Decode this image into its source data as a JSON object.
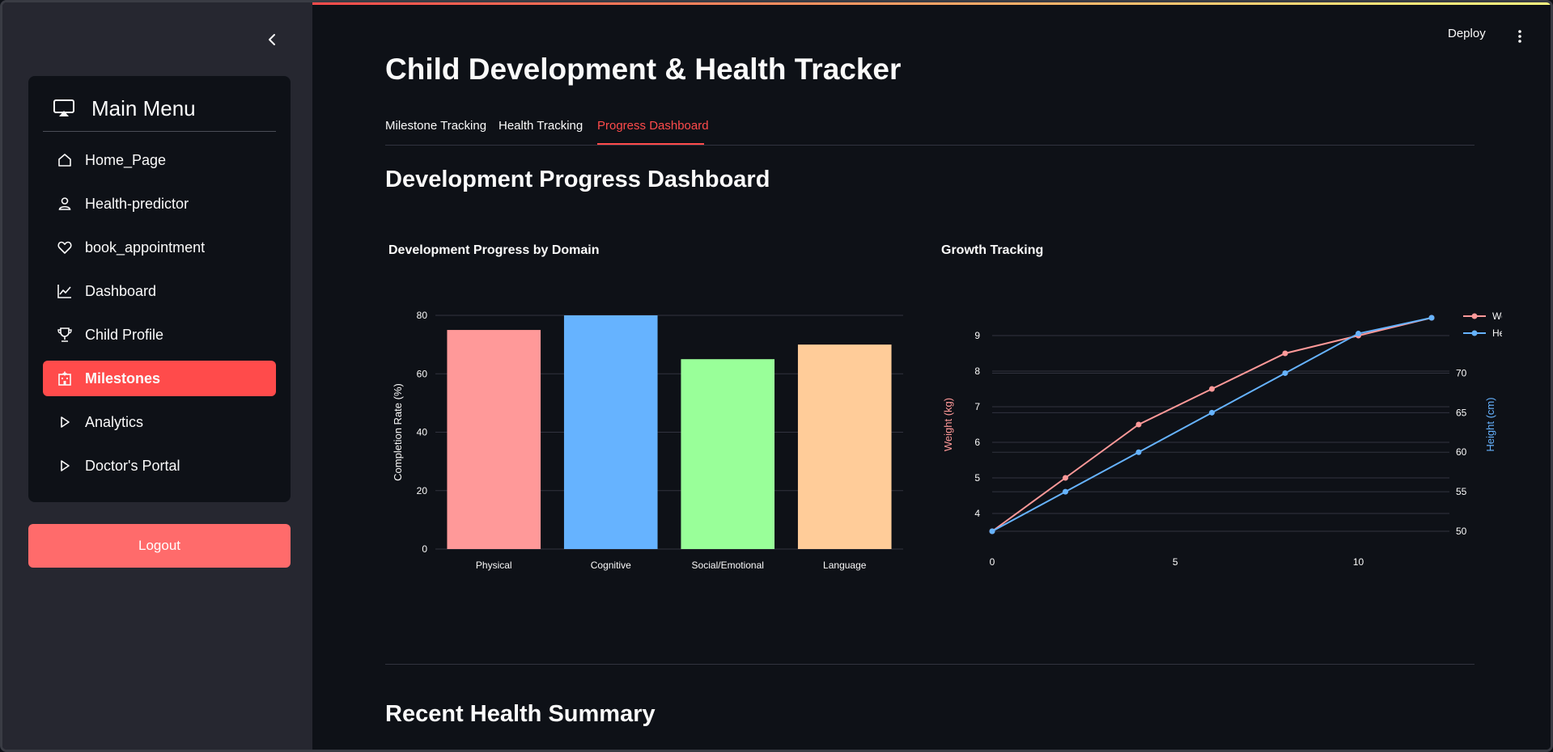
{
  "sidebar": {
    "menu_title": "Main Menu",
    "items": [
      {
        "label": "Home_Page",
        "icon": "house-icon"
      },
      {
        "label": "Health-predictor",
        "icon": "person-icon"
      },
      {
        "label": "book_appointment",
        "icon": "heart-icon"
      },
      {
        "label": "Dashboard",
        "icon": "graph-up-icon"
      },
      {
        "label": "Child Profile",
        "icon": "trophy-icon"
      },
      {
        "label": "Milestones",
        "icon": "hospital-icon",
        "active": true
      },
      {
        "label": "Analytics",
        "icon": "play-icon"
      },
      {
        "label": "Doctor's Portal",
        "icon": "play-icon"
      }
    ],
    "logout_label": "Logout"
  },
  "header": {
    "deploy_label": "Deploy"
  },
  "main": {
    "title": "Child Development & Health Tracker",
    "tabs": [
      {
        "label": "Milestone Tracking"
      },
      {
        "label": "Health Tracking"
      },
      {
        "label": "Progress Dashboard",
        "active": true
      }
    ],
    "section_title": "Development Progress Dashboard",
    "summary_title": "Recent Health Summary"
  },
  "colors": {
    "accent": "#ff4b4b",
    "logout": "#ff6b6b",
    "weight": "#ff9999",
    "height": "#66b3ff"
  },
  "chart_data": [
    {
      "type": "bar",
      "title": "Development Progress by Domain",
      "xlabel": "",
      "ylabel": "Completion Rate (%)",
      "categories": [
        "Physical",
        "Cognitive",
        "Social/Emotional",
        "Language"
      ],
      "values": [
        75,
        80,
        65,
        70
      ],
      "colors": [
        "#ff9999",
        "#66b3ff",
        "#99ff99",
        "#ffcc99"
      ],
      "ylim": [
        0,
        80
      ],
      "yticks": [
        "0",
        "20",
        "40",
        "60",
        "80"
      ],
      "grid": true
    },
    {
      "type": "line",
      "title": "Growth Tracking",
      "xlabel": "",
      "x": [
        0,
        2,
        4,
        6,
        8,
        10,
        12
      ],
      "xticks": [
        "0",
        "5",
        "10"
      ],
      "xlim": [
        0,
        12
      ],
      "series": [
        {
          "name": "Weight (kg)",
          "axis": "left",
          "values": [
            3.5,
            5.0,
            6.5,
            7.5,
            8.5,
            9.0,
            9.5
          ],
          "color": "#ff9999"
        },
        {
          "name": "Height (cm)",
          "axis": "right",
          "values": [
            50,
            55,
            60,
            65,
            70,
            75,
            77
          ],
          "color": "#66b3ff"
        }
      ],
      "ylabel_left": "Weight (kg)",
      "ylabel_right": "Height (cm)",
      "ylim_left": [
        3.5,
        9.5
      ],
      "ylim_right": [
        50,
        77
      ],
      "yticks_left": [
        "4",
        "5",
        "6",
        "7",
        "8",
        "9"
      ],
      "yticks_right": [
        "50",
        "55",
        "60",
        "65",
        "70"
      ],
      "legend": "top-right",
      "grid": true
    }
  ]
}
